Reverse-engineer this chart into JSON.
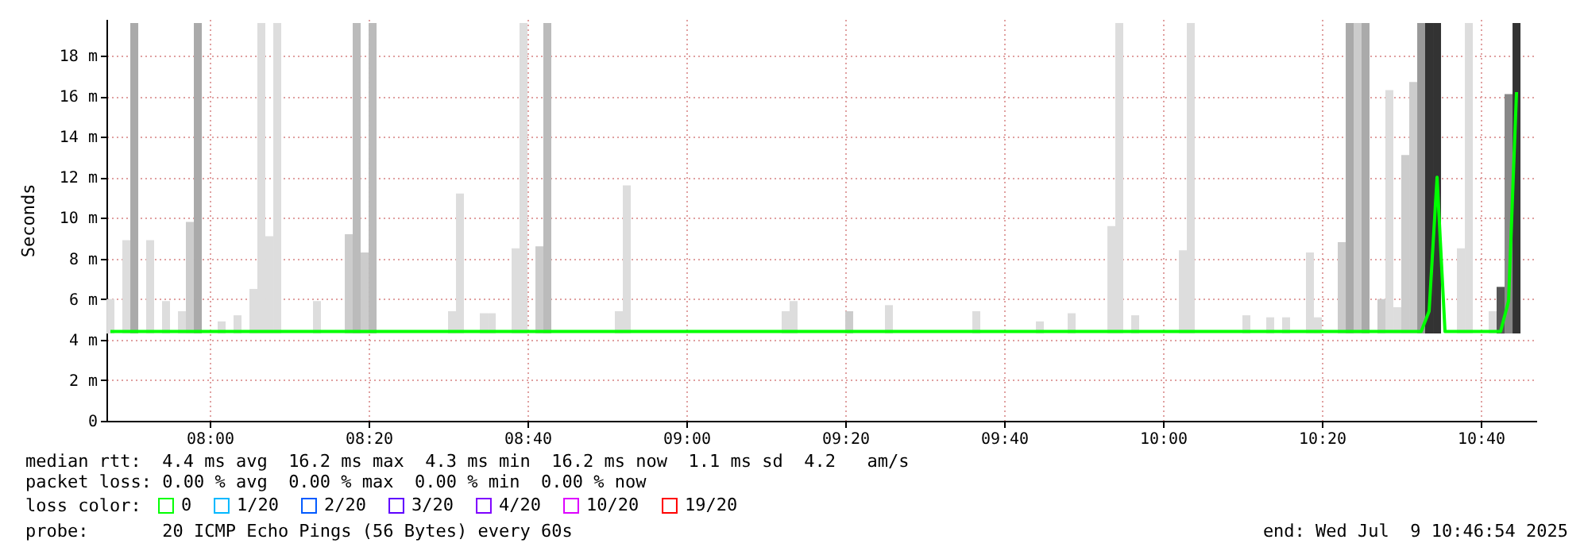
{
  "chart_data": {
    "type": "line",
    "ylabel": "Seconds",
    "legend_title": "loss color:",
    "legend": "bottom",
    "grid": true,
    "xlim": [
      7.7833,
      10.7833
    ],
    "xticks": [
      {
        "value": 8,
        "label": "08:00"
      },
      {
        "value": 8.3333,
        "label": "08:20"
      },
      {
        "value": 8.6667,
        "label": "08:40"
      },
      {
        "value": 9,
        "label": "09:00"
      },
      {
        "value": 9.3333,
        "label": "09:20"
      },
      {
        "value": 9.6667,
        "label": "09:40"
      },
      {
        "value": 10,
        "label": "10:00"
      },
      {
        "value": 10.3333,
        "label": "10:20"
      },
      {
        "value": 10.6667,
        "label": "10:40"
      }
    ],
    "ylim": [
      0,
      19.8
    ],
    "yticks": [
      0,
      {
        "value": 2,
        "label": "2 m"
      },
      {
        "value": 4,
        "label": "4 m"
      },
      {
        "value": 6,
        "label": "6 m"
      },
      {
        "value": 8,
        "label": "8 m"
      },
      {
        "value": 10,
        "label": "10 m"
      },
      {
        "value": 12,
        "label": "12 m"
      },
      {
        "value": 14,
        "label": "14 m"
      },
      {
        "value": 16,
        "label": "16 m"
      },
      {
        "value": 18,
        "label": "18 m"
      }
    ],
    "annotations": [
      "median rtt:  4.4 ms avg  16.2 ms max  4.3 ms min  16.2 ms now  1.1 ms sd  4.2   am/s",
      "packet loss: 0.00 % avg  0.00 % max  0.00 % min  0.00 % now",
      "probe:       20 ICMP Echo Pings (56 Bytes) every 60s",
      "end: Wed Jul  9 10:46:54 2025"
    ],
    "series": [
      {
        "type": "bar",
        "x": [
          7.7917,
          7.825,
          7.8417,
          7.875,
          7.9083,
          7.9417,
          7.9583,
          7.975,
          8.025,
          8.0583,
          8.0917,
          8.1083,
          8.125,
          8.1417,
          8.225,
          8.2917,
          8.3083,
          8.325,
          8.3417,
          8.5083,
          8.525,
          8.575,
          8.5917,
          8.6417,
          8.6583,
          8.6917,
          8.7083,
          8.8583,
          8.875,
          9.2083,
          9.225,
          9.3417,
          9.425,
          9.6083,
          9.7417,
          9.8083,
          9.8917,
          9.9083,
          9.9417,
          10.0417,
          10.0583,
          10.175,
          10.225,
          10.2583,
          10.3083,
          10.325,
          10.375,
          10.3917,
          10.4083,
          10.425,
          10.4583,
          10.475,
          10.4917,
          10.5083,
          10.525,
          10.5417,
          10.5583,
          10.575,
          10.625,
          10.6417,
          10.6917,
          10.7083,
          10.725,
          10.7417
        ],
        "base": [
          4.3,
          4.3,
          4.3,
          4.3,
          4.3,
          4.3,
          4.3,
          4.3,
          4.3,
          4.3,
          4.3,
          4.3,
          4.3,
          4.3,
          4.3,
          4.3,
          4.3,
          4.3,
          4.3,
          4.3,
          4.3,
          4.3,
          4.3,
          4.3,
          4.3,
          4.3,
          4.3,
          4.3,
          4.3,
          4.3,
          4.3,
          4.3,
          4.3,
          4.3,
          4.3,
          4.3,
          4.3,
          4.3,
          4.3,
          4.3,
          4.3,
          4.3,
          4.3,
          4.3,
          4.3,
          4.3,
          4.3,
          4.3,
          4.3,
          4.3,
          4.3,
          4.3,
          4.3,
          4.3,
          4.3,
          4.3,
          4.3,
          4.3,
          4.3,
          4.3,
          4.3,
          4.3,
          4.3,
          4.3
        ],
        "values": [
          1.7,
          4.6,
          15.3,
          4.6,
          1.6,
          1.1,
          5.5,
          15.3,
          0.6,
          0.9,
          2.2,
          15.3,
          4.8,
          15.3,
          1.6,
          4.9,
          15.3,
          4.0,
          15.3,
          1.1,
          6.9,
          1.0,
          1.0,
          4.2,
          15.3,
          4.3,
          15.3,
          1.1,
          7.3,
          1.1,
          1.6,
          1.1,
          1.4,
          1.1,
          0.6,
          1.0,
          5.3,
          15.3,
          0.9,
          4.1,
          15.3,
          0.9,
          0.8,
          0.8,
          4.0,
          0.8,
          4.5,
          15.3,
          15.3,
          15.3,
          1.7,
          12.0,
          1.3,
          8.8,
          12.4,
          15.3,
          15.3,
          15.3,
          4.2,
          15.3,
          1.1,
          2.3,
          11.8,
          15.3
        ],
        "colors": [
          "#dddddd",
          "#dddddd",
          "#aaaaaa",
          "#dddddd",
          "#dddddd",
          "#dddddd",
          "#cccccc",
          "#aaaaaa",
          "#dddddd",
          "#dddddd",
          "#dddddd",
          "#dddddd",
          "#dddddd",
          "#dddddd",
          "#dddddd",
          "#cccccc",
          "#bbbbbb",
          "#cccccc",
          "#bbbbbb",
          "#dddddd",
          "#dddddd",
          "#dddddd",
          "#dddddd",
          "#dddddd",
          "#dddddd",
          "#cccccc",
          "#bbbbbb",
          "#dddddd",
          "#dddddd",
          "#dddddd",
          "#dddddd",
          "#cccccc",
          "#dddddd",
          "#dddddd",
          "#dddddd",
          "#dddddd",
          "#dddddd",
          "#dddddd",
          "#dddddd",
          "#dddddd",
          "#dddddd",
          "#dddddd",
          "#dddddd",
          "#dddddd",
          "#dddddd",
          "#dddddd",
          "#cccccc",
          "#aaaaaa",
          "#cccccc",
          "#aaaaaa",
          "#cccccc",
          "#dddddd",
          "#dddddd",
          "#cccccc",
          "#cccccc",
          "#999999",
          "#333333",
          "#333333",
          "#dddddd",
          "#dddddd",
          "#dddddd",
          "#555555",
          "#888888",
          "#333333"
        ]
      },
      {
        "name": "0",
        "color": "#00ff00",
        "x": [
          7.7917,
          10.5417,
          10.5583,
          10.575,
          10.5917,
          10.7083,
          10.725,
          10.7417
        ],
        "values": [
          4.4,
          4.4,
          5.4,
          12.0,
          4.4,
          4.4,
          5.9,
          16.2
        ]
      },
      {
        "name": "1/20",
        "color": "#00b8ff"
      },
      {
        "name": "2/20",
        "color": "#0059ff"
      },
      {
        "name": "3/20",
        "color": "#5e00ff"
      },
      {
        "name": "4/20",
        "color": "#7e00ff"
      },
      {
        "name": "10/20",
        "color": "#dd00ff"
      },
      {
        "name": "19/20",
        "color": "#ff0000"
      }
    ]
  }
}
